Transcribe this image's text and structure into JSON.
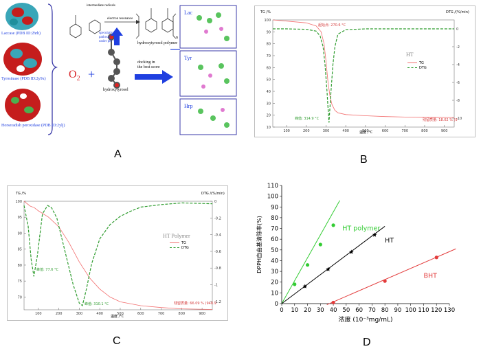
{
  "panel_labels": {
    "a": "A",
    "b": "B",
    "c": "C",
    "d": "D"
  },
  "panel_a": {
    "enzymes": [
      {
        "label": "Laccase (PDB ID:2hrh)"
      },
      {
        "label": "Tyrosinase (PDB ID:2y9x)"
      },
      {
        "label": "Horseradish peroxidase (PDB ID:2ylj)"
      }
    ],
    "o2_label": "O",
    "o2_sub": "2",
    "plus": "+",
    "electron_resonance": "electron resonance",
    "intermediate_radicals": "intermediate radicals",
    "speculative_pathway": [
      "speculative",
      "pathway",
      "under pH < 7"
    ],
    "polymer_label": "hydroxytyrosol polymer",
    "monomer_label": "hydroxytyrosol",
    "docking_label": [
      "docking in",
      "the best score"
    ],
    "n_label": "n",
    "dock_panels": [
      "Lac",
      "Tyr",
      "Hrp"
    ],
    "colors": {
      "arrow": "#1f3fe0",
      "o2": "#d9262a",
      "box_border": "#3a3aa8"
    }
  },
  "panel_b": {
    "left_axis": "TG /%",
    "right_axis": "DTG /(%/min)",
    "xlabel": "温度 /°C",
    "onset_label": "起始点: 270.6 °C",
    "peak_label": "峰值: 314.9 °C",
    "residue_label": "残留质量: 18.02 % (9",
    "sample_name": "HT",
    "legend": [
      "TG",
      "DTG"
    ]
  },
  "panel_c": {
    "left_axis": "TG /%",
    "right_axis": "DTG /(%/min)",
    "xlabel": "温度 /°C",
    "peak1_label": "峰值: 77.6 °C",
    "peak2_label": "峰值: 310.1 °C",
    "residue_label": "残留质量: 66.09 % (948.9",
    "sample_name": "HT Polymer",
    "legend": [
      "TG",
      "DTG"
    ]
  },
  "chart_data": [
    {
      "type": "line",
      "panel": "B",
      "x_unit": "°C",
      "xlim": [
        30,
        950
      ],
      "ylim_left": [
        10,
        100
      ],
      "ylim_right": [
        -11,
        1
      ],
      "xticks": [
        100,
        200,
        300,
        400,
        500,
        600,
        700,
        800,
        900
      ],
      "yticks_left": [
        10,
        20,
        30,
        40,
        50,
        60,
        70,
        80,
        90,
        100
      ],
      "yticks_right": [
        0,
        -2,
        -4,
        -6,
        -8,
        -10
      ],
      "series": [
        {
          "name": "TG",
          "axis": "left",
          "color": "#f26d6d",
          "x": [
            30,
            100,
            200,
            250,
            275,
            290,
            300,
            310,
            320,
            330,
            345,
            360,
            400,
            500,
            600,
            700,
            800,
            950
          ],
          "y": [
            100,
            99,
            97.5,
            95,
            90,
            80,
            65,
            48,
            36,
            29,
            24,
            22,
            20.5,
            19.5,
            18.8,
            18.4,
            18.2,
            18
          ]
        },
        {
          "name": "DTG",
          "axis": "right",
          "color": "#2e9c2e",
          "x": [
            30,
            100,
            200,
            250,
            270,
            285,
            295,
            305,
            312,
            315,
            318,
            325,
            335,
            345,
            360,
            400,
            500,
            600,
            700,
            800,
            950
          ],
          "y": [
            0,
            0,
            -0.05,
            -0.25,
            -0.8,
            -2,
            -4,
            -7,
            -9.5,
            -10.5,
            -9.5,
            -7,
            -4,
            -2,
            -0.6,
            -0.1,
            0,
            0,
            0,
            0,
            0
          ]
        }
      ]
    },
    {
      "type": "line",
      "panel": "C",
      "x_unit": "°C",
      "xlim": [
        30,
        950
      ],
      "ylim_left": [
        66,
        100
      ],
      "ylim_right": [
        -1.3,
        0
      ],
      "xticks": [
        100,
        200,
        300,
        400,
        500,
        600,
        700,
        800,
        900
      ],
      "yticks_left": [
        70,
        75,
        80,
        85,
        90,
        95,
        100
      ],
      "yticks_right": [
        0,
        -0.2,
        -0.4,
        -0.6,
        -0.8,
        -1,
        -1.2
      ],
      "series": [
        {
          "name": "TG",
          "axis": "left",
          "color": "#f26d6d",
          "x": [
            30,
            60,
            80,
            100,
            150,
            200,
            250,
            300,
            350,
            400,
            450,
            500,
            600,
            700,
            800,
            950
          ],
          "y": [
            100,
            98.5,
            98,
            97,
            95,
            92,
            87,
            81,
            76,
            72.5,
            70,
            68.5,
            67.3,
            66.7,
            66.3,
            66.1
          ]
        },
        {
          "name": "DTG",
          "axis": "right",
          "color": "#2e9c2e",
          "x": [
            30,
            50,
            65,
            78,
            95,
            120,
            145,
            165,
            190,
            230,
            270,
            300,
            315,
            335,
            360,
            400,
            450,
            500,
            550,
            600,
            700,
            800,
            950
          ],
          "y": [
            -0.05,
            -0.3,
            -0.7,
            -0.9,
            -0.65,
            -0.15,
            -0.05,
            -0.08,
            -0.2,
            -0.6,
            -1.0,
            -1.22,
            -1.25,
            -1.05,
            -0.75,
            -0.45,
            -0.28,
            -0.18,
            -0.12,
            -0.07,
            -0.04,
            -0.02,
            -0.03
          ]
        }
      ]
    },
    {
      "type": "scatter",
      "panel": "D",
      "xlabel": "浓度 (10⁻³mg/mL)",
      "ylabel": "DPPH自由基清除率(%)",
      "xlim": [
        0,
        130
      ],
      "ylim": [
        0,
        110
      ],
      "xticks": [
        0,
        10,
        20,
        30,
        40,
        50,
        60,
        70,
        80,
        90,
        100,
        110,
        120,
        130
      ],
      "yticks": [
        0,
        10,
        20,
        30,
        40,
        50,
        60,
        70,
        80,
        90,
        100,
        110
      ],
      "series": [
        {
          "name": "HT polymer",
          "color": "#33cc33",
          "marker": "circle",
          "x": [
            10,
            20,
            30,
            40
          ],
          "y": [
            18,
            36,
            55,
            73
          ],
          "fit": {
            "x": [
              0,
              45
            ],
            "y": [
              0,
              96
            ]
          }
        },
        {
          "name": "HT",
          "color": "#000000",
          "marker": "star",
          "x": [
            18,
            36,
            54,
            72
          ],
          "y": [
            16,
            32,
            48,
            64
          ],
          "fit": {
            "x": [
              0,
              80
            ],
            "y": [
              0,
              72
            ]
          }
        },
        {
          "name": "BHT",
          "color": "#e33b3b",
          "marker": "circle",
          "x": [
            40,
            80,
            120
          ],
          "y": [
            1,
            21,
            43
          ],
          "fit": {
            "x": [
              35,
              135
            ],
            "y": [
              -1,
              51
            ]
          }
        }
      ]
    }
  ]
}
